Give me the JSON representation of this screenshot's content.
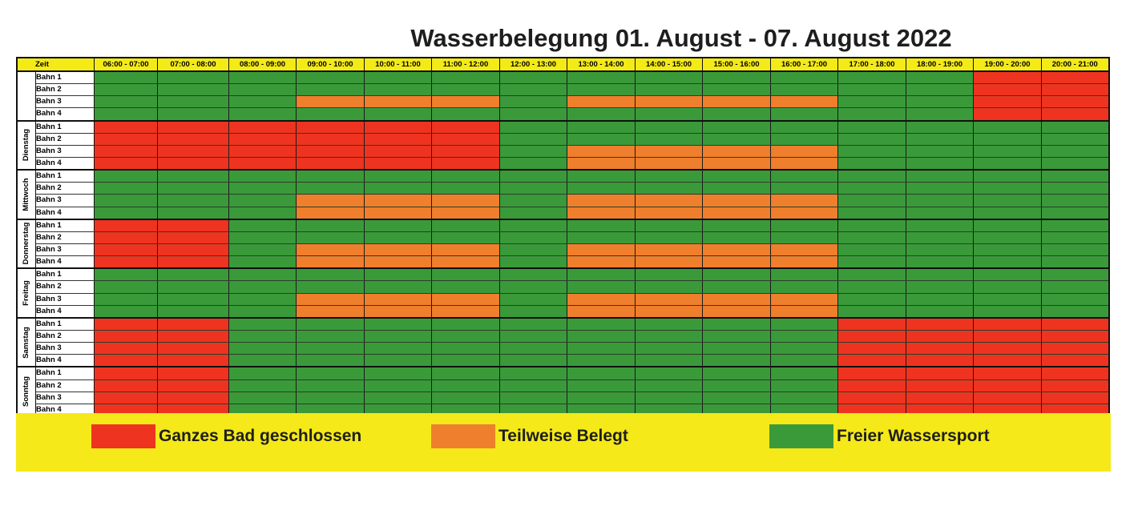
{
  "title": "Wasserbelegung 01. August - 07. August 2022",
  "header": {
    "zeit_label": "Zeit",
    "time_slots": [
      "06:00 - 07:00",
      "07:00 - 08:00",
      "08:00 - 09:00",
      "09:00 - 10:00",
      "10:00 - 11:00",
      "11:00 - 12:00",
      "12:00 - 13:00",
      "13:00 - 14:00",
      "14:00 - 15:00",
      "15:00 - 16:00",
      "16:00 - 17:00",
      "17:00 - 18:00",
      "18:00 - 19:00",
      "19:00 - 20:00",
      "20:00 - 21:00"
    ]
  },
  "lane_labels": [
    "Bahn 1",
    "Bahn 2",
    "Bahn 3",
    "Bahn 4"
  ],
  "status_colors": {
    "red": "#ee3420",
    "orange": "#ef7f2c",
    "green": "#3a9a3a"
  },
  "days": [
    {
      "label": "",
      "lanes": [
        "GGGGGGGGGGGGGRR",
        "GGGGGGGGGGGGGRR",
        "GGGOOOGOOOOGGRR",
        "GGGGGGGGGGGGGRR"
      ]
    },
    {
      "label": "Dienstag",
      "lanes": [
        "RRRRRRGGGGGGGGG",
        "RRRRRRGGGGGGGGG",
        "RRRRRRGOOOOGGGG",
        "RRRRRRGOOOOGGGG"
      ]
    },
    {
      "label": "Mittwoch",
      "lanes": [
        "GGGGGGGGGGGGGGG",
        "GGGGGGGGGGGGGGG",
        "GGGOOOGOOOOGGGG",
        "GGGOOOGOOOOGGGG"
      ]
    },
    {
      "label": "Donnerstag",
      "lanes": [
        "RRGGGGGGGGGGGGG",
        "RRGGGGGGGGGGGGG",
        "RRGOOOGOOOOGGGG",
        "RRGOOOGOOOOGGGG"
      ]
    },
    {
      "label": "Freitag",
      "lanes": [
        "GGGGGGGGGGGGGGG",
        "GGGGGGGGGGGGGGG",
        "GGGOOOGOOOOGGGG",
        "GGGOOOGOOOOGGGG"
      ]
    },
    {
      "label": "Samstag",
      "lanes": [
        "RRGGGGGGGGGRRRR",
        "RRGGGGGGGGGRRRR",
        "RRGGGGGGGGGRRRR",
        "RRGGGGGGGGGRRRR"
      ]
    },
    {
      "label": "Sonntag",
      "lanes": [
        "RRGGGGGGGGGRRRR",
        "RRGGGGGGGGGRRRR",
        "RRGGGGGGGGGRRRR",
        "RRGGGGGGGGGRRRR"
      ]
    }
  ],
  "legend": [
    {
      "status": "red",
      "label": "Ganzes Bad geschlossen"
    },
    {
      "status": "orange",
      "label": "Teilweise Belegt"
    },
    {
      "status": "green",
      "label": "Freier Wassersport"
    }
  ]
}
